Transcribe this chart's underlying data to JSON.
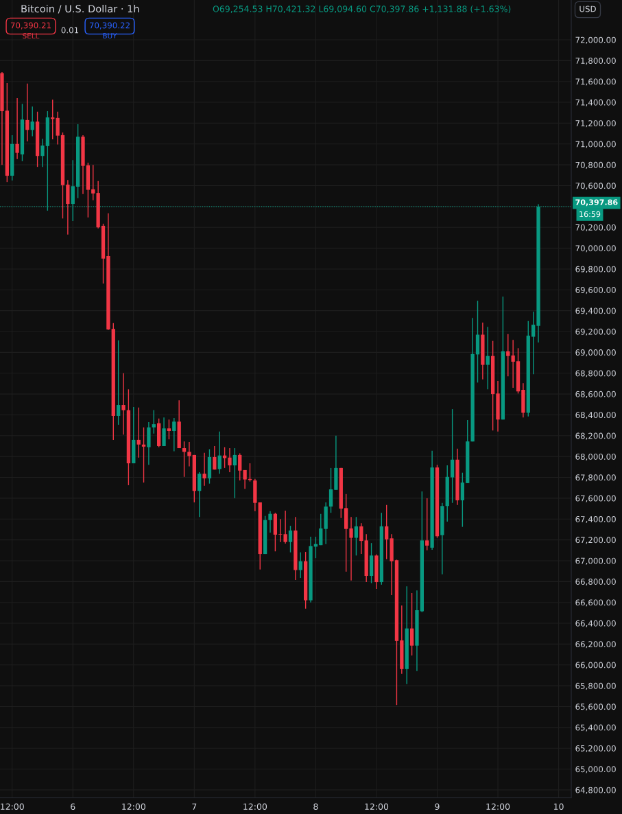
{
  "chart_data": {
    "type": "candlestick",
    "title": "Bitcoin / U.S. Dollar · 1h",
    "subtitle": "O69,254.53 H70,421.32 L69,094.60 C70,397.86 +1,131.88 (+1.63%)",
    "annotations": [
      "70,390.21",
      "SELL",
      "0.01",
      "70,390.22",
      "BUY",
      "USD",
      "16:59"
    ],
    "categories": [
      null,
      null,
      "12:00",
      null,
      null,
      null,
      null,
      null,
      null,
      null,
      null,
      null,
      null,
      null,
      "6",
      null,
      null,
      null,
      null,
      null,
      null,
      null,
      null,
      null,
      null,
      null,
      "12:00",
      null,
      null,
      null,
      null,
      null,
      null,
      null,
      null,
      null,
      null,
      null,
      "7",
      null,
      null,
      null,
      null,
      null,
      null,
      null,
      null,
      null,
      null,
      null,
      "12:00",
      null,
      null,
      null,
      null,
      null,
      null,
      null,
      null,
      null,
      null,
      null,
      "8",
      null,
      null,
      null,
      null,
      null,
      null,
      null,
      null,
      null,
      null,
      null,
      "12:00",
      null,
      null,
      null,
      null,
      null,
      null,
      null,
      null,
      null,
      null,
      null,
      "9",
      null,
      null,
      null,
      null,
      null,
      null,
      null,
      null,
      null,
      null,
      null,
      "12:00",
      null,
      null,
      null,
      null,
      null,
      null,
      null,
      null,
      null,
      null,
      null,
      "10"
    ],
    "ohlc": [
      [
        71680,
        71690,
        70800,
        71315
      ],
      [
        71320,
        71585,
        70635,
        70695
      ],
      [
        70695,
        71085,
        70650,
        71000
      ],
      [
        71000,
        71440,
        70855,
        70915
      ],
      [
        70900,
        71385,
        70835,
        71235
      ],
      [
        71230,
        71580,
        71025,
        71135
      ],
      [
        71135,
        71360,
        71075,
        71215
      ],
      [
        71215,
        71310,
        70780,
        70885
      ],
      [
        70885,
        71050,
        70780,
        70985
      ],
      [
        70980,
        71315,
        70360,
        71255
      ],
      [
        71255,
        71425,
        71045,
        71240
      ],
      [
        71250,
        71310,
        70995,
        71080
      ],
      [
        71085,
        71110,
        70285,
        70605
      ],
      [
        70610,
        70655,
        70130,
        70425
      ],
      [
        70425,
        70845,
        70260,
        70595
      ],
      [
        70590,
        71190,
        70480,
        71070
      ],
      [
        71070,
        71085,
        70520,
        70790
      ],
      [
        70795,
        70820,
        70295,
        70560
      ],
      [
        70565,
        70800,
        70460,
        70525
      ],
      [
        70530,
        70645,
        70190,
        70200
      ],
      [
        70215,
        70235,
        69660,
        69900
      ],
      [
        69925,
        70335,
        69215,
        69220
      ],
      [
        69225,
        69280,
        68160,
        68390
      ],
      [
        68390,
        69115,
        68305,
        68495
      ],
      [
        68495,
        68800,
        68210,
        68445
      ],
      [
        68445,
        68645,
        67725,
        67935
      ],
      [
        67935,
        68475,
        67935,
        68160
      ],
      [
        68160,
        68470,
        67990,
        68115
      ],
      [
        68115,
        68280,
        67750,
        68095
      ],
      [
        68090,
        68330,
        67920,
        68280
      ],
      [
        68280,
        68445,
        68220,
        68310
      ],
      [
        68320,
        68365,
        68090,
        68100
      ],
      [
        68100,
        68375,
        68100,
        68270
      ],
      [
        68270,
        68355,
        68165,
        68245
      ],
      [
        68245,
        68370,
        68050,
        68335
      ],
      [
        68335,
        68540,
        68080,
        68080
      ],
      [
        68080,
        68145,
        67805,
        68045
      ],
      [
        68045,
        68140,
        67905,
        68005
      ],
      [
        68015,
        68015,
        67560,
        67670
      ],
      [
        67670,
        67850,
        67420,
        67835
      ],
      [
        67835,
        68035,
        67720,
        67790
      ],
      [
        67790,
        68070,
        67740,
        67995
      ],
      [
        67995,
        68100,
        67875,
        67875
      ],
      [
        67880,
        68240,
        67835,
        68010
      ],
      [
        68010,
        68090,
        67890,
        67985
      ],
      [
        67990,
        68080,
        67850,
        67915
      ],
      [
        67915,
        68080,
        67600,
        68015
      ],
      [
        68015,
        68030,
        67770,
        67865
      ],
      [
        67870,
        67870,
        67690,
        67780
      ],
      [
        67785,
        67935,
        67760,
        67775
      ],
      [
        67770,
        67785,
        67475,
        67555
      ],
      [
        67560,
        67560,
        66915,
        67065
      ],
      [
        67065,
        67430,
        67065,
        67390
      ],
      [
        67390,
        67475,
        67270,
        67450
      ],
      [
        67450,
        67460,
        67090,
        67250
      ],
      [
        67255,
        67400,
        67180,
        67250
      ],
      [
        67255,
        67480,
        67165,
        67180
      ],
      [
        67180,
        67335,
        67080,
        67290
      ],
      [
        67290,
        67420,
        66815,
        66910
      ],
      [
        66910,
        67080,
        66835,
        66995
      ],
      [
        66995,
        67085,
        66540,
        66620
      ],
      [
        66620,
        67230,
        66600,
        67140
      ],
      [
        67135,
        67230,
        67025,
        67160
      ],
      [
        67150,
        67450,
        67150,
        67310
      ],
      [
        67305,
        67560,
        67160,
        67520
      ],
      [
        67520,
        67890,
        67460,
        67685
      ],
      [
        67680,
        68200,
        67680,
        67890
      ],
      [
        67890,
        67890,
        67410,
        67500
      ],
      [
        67505,
        67640,
        66895,
        67305
      ],
      [
        67310,
        67420,
        66810,
        67220
      ],
      [
        67220,
        67420,
        67050,
        67330
      ],
      [
        67330,
        67360,
        67065,
        67190
      ],
      [
        67195,
        67255,
        66795,
        66855
      ],
      [
        66855,
        67170,
        66785,
        67050
      ],
      [
        67050,
        67060,
        66730,
        66795
      ],
      [
        66795,
        67460,
        66770,
        67330
      ],
      [
        67330,
        67535,
        67015,
        67205
      ],
      [
        67215,
        67255,
        66670,
        66995
      ],
      [
        67005,
        67010,
        65615,
        66230
      ],
      [
        66235,
        66570,
        65915,
        65960
      ],
      [
        65960,
        66755,
        65815,
        66350
      ],
      [
        66350,
        66690,
        66090,
        66185
      ],
      [
        66185,
        66715,
        65940,
        66525
      ],
      [
        66515,
        67665,
        66505,
        67195
      ],
      [
        67195,
        67600,
        67100,
        67145
      ],
      [
        67125,
        68055,
        67105,
        67895
      ],
      [
        67895,
        67920,
        67220,
        67235
      ],
      [
        67245,
        67555,
        66870,
        67525
      ],
      [
        67525,
        67915,
        67375,
        67805
      ],
      [
        67800,
        68455,
        67555,
        67970
      ],
      [
        67970,
        68075,
        67535,
        67580
      ],
      [
        67580,
        67845,
        67325,
        67750
      ],
      [
        67745,
        68350,
        67745,
        68145
      ],
      [
        68145,
        69330,
        68145,
        68985
      ],
      [
        68980,
        69495,
        68710,
        69170
      ],
      [
        69170,
        69285,
        68740,
        68880
      ],
      [
        68880,
        69245,
        68645,
        68965
      ],
      [
        68965,
        69110,
        68250,
        68600
      ],
      [
        68605,
        68725,
        68240,
        68355
      ],
      [
        68355,
        69535,
        68355,
        69010
      ],
      [
        69010,
        69175,
        68770,
        68965
      ],
      [
        68970,
        69120,
        68660,
        68910
      ],
      [
        68915,
        69040,
        68605,
        68625
      ],
      [
        68640,
        68705,
        68375,
        68420
      ],
      [
        68420,
        69300,
        68385,
        69160
      ],
      [
        69150,
        69390,
        68790,
        69265
      ],
      [
        69254.53,
        70421.32,
        69094.6,
        70397.86
      ],
      null,
      null,
      null,
      null
    ],
    "colors": [
      "#f23645",
      "#f23645",
      "#089981",
      "#f23645",
      "#089981",
      "#f23645",
      "#089981",
      "#f23645",
      "#089981",
      "#089981",
      "#f23645",
      "#f23645",
      "#f23645",
      "#f23645",
      "#089981",
      "#089981",
      "#f23645",
      "#f23645",
      "#f23645",
      "#f23645",
      "#f23645",
      "#f23645",
      "#f23645",
      "#089981",
      "#f23645",
      "#f23645",
      "#089981",
      "#f23645",
      "#f23645",
      "#089981",
      "#089981",
      "#f23645",
      "#089981",
      "#f23645",
      "#089981",
      "#f23645",
      "#f23645",
      "#f23645",
      "#f23645",
      "#089981",
      "#f23645",
      "#089981",
      "#f23645",
      "#089981",
      "#f23645",
      "#f23645",
      "#089981",
      "#f23645",
      "#f23645",
      "#f23645",
      "#f23645",
      "#f23645",
      "#089981",
      "#089981",
      "#f23645",
      "#f23645",
      "#f23645",
      "#089981",
      "#f23645",
      "#089981",
      "#f23645",
      "#089981",
      "#089981",
      "#089981",
      "#089981",
      "#089981",
      "#089981",
      "#f23645",
      "#f23645",
      "#f23645",
      "#089981",
      "#f23645",
      "#f23645",
      "#089981",
      "#f23645",
      "#089981",
      "#f23645",
      "#f23645",
      "#f23645",
      "#f23645",
      "#089981",
      "#f23645",
      "#089981",
      "#089981",
      "#f23645",
      "#089981",
      "#f23645",
      "#089981",
      "#089981",
      "#089981",
      "#f23645",
      "#089981",
      "#089981",
      "#089981",
      "#089981",
      "#f23645",
      "#089981",
      "#f23645",
      "#f23645",
      "#089981",
      "#f23645",
      "#f23645",
      "#f23645",
      "#f23645",
      "#089981",
      "#089981",
      "#089981",
      null,
      null,
      null,
      null
    ],
    "ylim": [
      64727,
      72382
    ],
    "yticks": [
      {
        "value": 64800,
        "label": "64,800.00"
      },
      {
        "value": 65000,
        "label": "65,000.00"
      },
      {
        "value": 65200,
        "label": "65,200.00"
      },
      {
        "value": 65400,
        "label": "65,400.00"
      },
      {
        "value": 65600,
        "label": "65,600.00"
      },
      {
        "value": 65800,
        "label": "65,800.00"
      },
      {
        "value": 66000,
        "label": "66,000.00"
      },
      {
        "value": 66200,
        "label": "66,200.00"
      },
      {
        "value": 66400,
        "label": "66,400.00"
      },
      {
        "value": 66600,
        "label": "66,600.00"
      },
      {
        "value": 66800,
        "label": "66,800.00"
      },
      {
        "value": 67000,
        "label": "67,000.00"
      },
      {
        "value": 67200,
        "label": "67,200.00"
      },
      {
        "value": 67400,
        "label": "67,400.00"
      },
      {
        "value": 67600,
        "label": "67,600.00"
      },
      {
        "value": 67800,
        "label": "67,800.00"
      },
      {
        "value": 68000,
        "label": "68,000.00"
      },
      {
        "value": 68200,
        "label": "68,200.00"
      },
      {
        "value": 68400,
        "label": "68,400.00"
      },
      {
        "value": 68600,
        "label": "68,600.00"
      },
      {
        "value": 68800,
        "label": "68,800.00"
      },
      {
        "value": 69000,
        "label": "69,000.00"
      },
      {
        "value": 69200,
        "label": "69,200.00"
      },
      {
        "value": 69400,
        "label": "69,400.00"
      },
      {
        "value": 69600,
        "label": "69,600.00"
      },
      {
        "value": 69800,
        "label": "69,800.00"
      },
      {
        "value": 70000,
        "label": "70,000.00"
      },
      {
        "value": 70200,
        "label": "70,200.00"
      },
      {
        "value": 70400,
        "label": null
      },
      {
        "value": 70600,
        "label": "70,600.00"
      },
      {
        "value": 70800,
        "label": "70,800.00"
      },
      {
        "value": 71000,
        "label": "71,000.00"
      },
      {
        "value": 71200,
        "label": "71,200.00"
      },
      {
        "value": 71400,
        "label": "71,400.00"
      },
      {
        "value": 71600,
        "label": "71,600.00"
      },
      {
        "value": 71800,
        "label": "71,800.00"
      },
      {
        "value": 72000,
        "label": "72,000.00"
      }
    ],
    "ref_lines": [
      {
        "axis": "y",
        "value": 70397.86,
        "label": "70,397.86",
        "color": "#089981",
        "line_style": "dotted"
      }
    ],
    "grid": true
  }
}
